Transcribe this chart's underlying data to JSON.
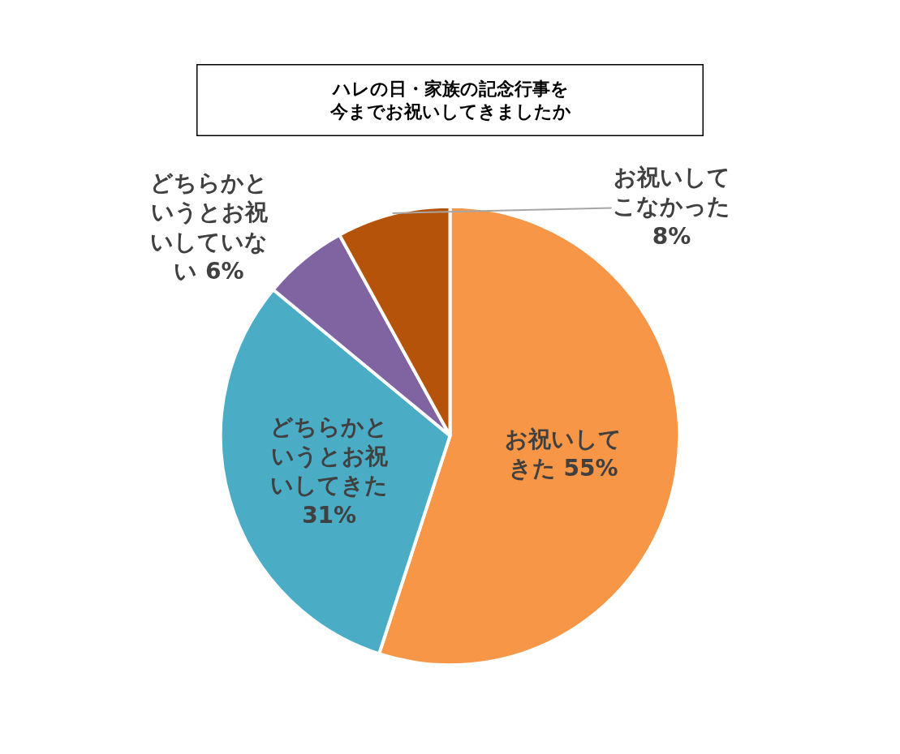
{
  "chart_data": {
    "type": "pie",
    "title": "ハレの日・家族の記念行事を今までお祝いしてきましたか",
    "categories": [
      "お祝いしてきた",
      "どちらかというとお祝いしてきた",
      "どちらかというとお祝いしていない",
      "お祝いしてこなかった"
    ],
    "values": [
      55,
      31,
      6,
      8
    ],
    "value_labels": [
      "55%",
      "31%",
      "6%",
      "8%"
    ],
    "colors": [
      "#f79646",
      "#4bacc6",
      "#8064a2",
      "#b45309"
    ],
    "legend": false
  }
}
